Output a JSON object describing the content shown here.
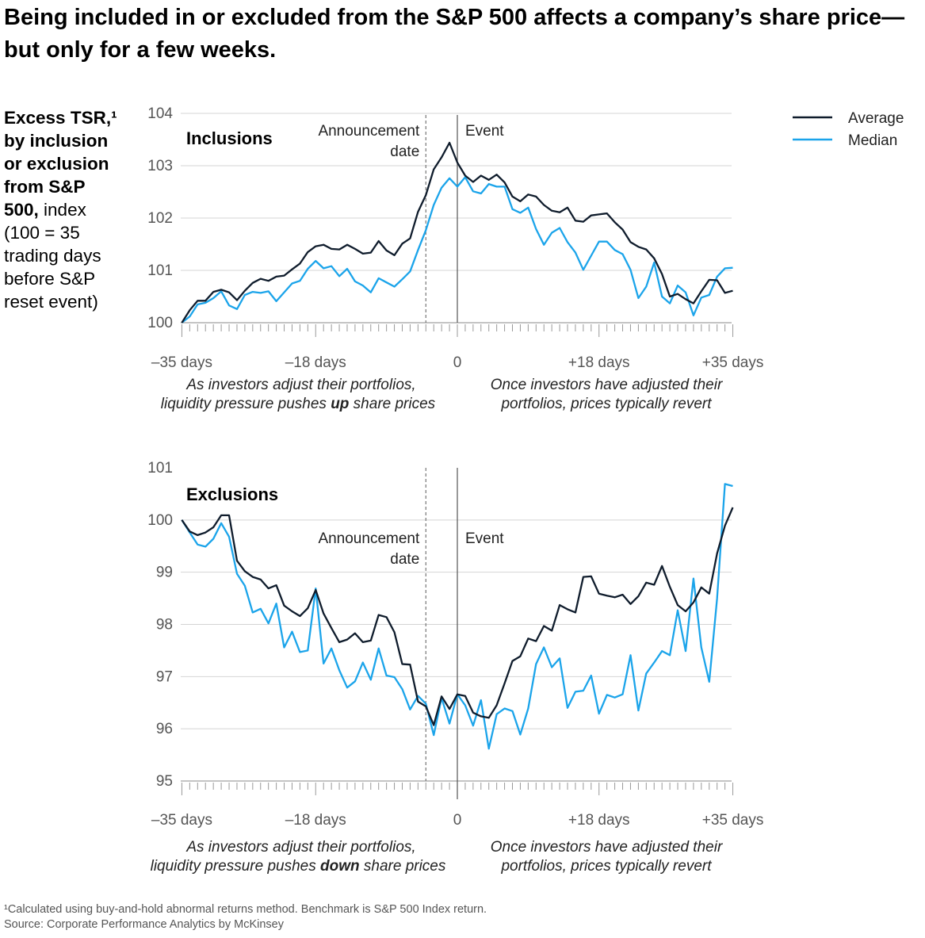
{
  "title": "Being included in or excluded from the S&P 500 affects a company’s share price—but only for a few weeks.",
  "y_label": {
    "bold": "Excess TSR,¹ by inclusion or exclusion from S&P 500,",
    "normal": " index (100 = 35 trading days before S&P reset event)"
  },
  "legend": [
    {
      "name": "Average",
      "color": "#0f1c2c"
    },
    {
      "name": "Median",
      "color": "#1ba4ea"
    }
  ],
  "footnote": {
    "note": "¹Calculated using buy-and-hold abnormal returns method. Benchmark is S&P 500 Index return.",
    "source": "Source: Corporate Performance Analytics by McKinsey"
  },
  "chart_data": [
    {
      "type": "line",
      "title": "Inclusions",
      "x_range": [
        -35,
        35
      ],
      "x_ticks": [
        {
          "value": -35,
          "label": "–35 days"
        },
        {
          "value": -18,
          "label": "–18 days"
        },
        {
          "value": 0,
          "label": "0"
        },
        {
          "value": 18,
          "label": "+18 days"
        },
        {
          "value": 35,
          "label": "+35 days"
        }
      ],
      "ylim": [
        100,
        104
      ],
      "y_ticks": [
        100,
        101,
        102,
        103,
        104
      ],
      "grid": true,
      "legend_position": "top-right",
      "markers": [
        {
          "day": -4,
          "label": [
            "Announcement",
            "date"
          ],
          "style": "dashed"
        },
        {
          "day": 0,
          "label": [
            "Event"
          ],
          "style": "solid"
        }
      ],
      "annotations": {
        "left": {
          "line1": "As investors adjust their portfolios,",
          "line2_pre": "liquidity pressure pushes ",
          "line2_bold": "up",
          "line2_post": " share prices"
        },
        "right": {
          "line1": "Once investors have adjusted their",
          "line2": "portfolios, prices typically revert"
        }
      },
      "x": [
        -35,
        -34,
        -33,
        -32,
        -31,
        -30,
        -29,
        -28,
        -27,
        -26,
        -25,
        -24,
        -23,
        -22,
        -21,
        -20,
        -19,
        -18,
        -17,
        -16,
        -15,
        -14,
        -13,
        -12,
        -11,
        -10,
        -9,
        -8,
        -7,
        -6,
        -5,
        -4,
        -3,
        -2,
        -1,
        0,
        1,
        2,
        3,
        4,
        5,
        6,
        7,
        8,
        9,
        10,
        11,
        12,
        13,
        14,
        15,
        16,
        17,
        18,
        19,
        20,
        21,
        22,
        23,
        24,
        25,
        26,
        27,
        28,
        29,
        30,
        31,
        32,
        33,
        34,
        35
      ],
      "series": [
        {
          "name": "Average",
          "color": "#0f1c2c",
          "values": [
            100.0,
            100.24,
            100.42,
            100.42,
            100.59,
            100.63,
            100.58,
            100.43,
            100.61,
            100.76,
            100.84,
            100.8,
            100.88,
            100.9,
            101.02,
            101.13,
            101.35,
            101.46,
            101.49,
            101.41,
            101.4,
            101.49,
            101.41,
            101.32,
            101.34,
            101.56,
            101.38,
            101.29,
            101.51,
            101.61,
            102.12,
            102.44,
            102.93,
            103.16,
            103.44,
            103.06,
            102.81,
            102.69,
            102.81,
            102.73,
            102.83,
            102.68,
            102.41,
            102.32,
            102.45,
            102.41,
            102.25,
            102.14,
            102.11,
            102.2,
            101.95,
            101.93,
            102.05,
            102.07,
            102.09,
            101.92,
            101.78,
            101.54,
            101.45,
            101.4,
            101.23,
            100.93,
            100.5,
            100.55,
            100.45,
            100.37,
            100.6,
            100.82,
            100.81,
            100.57,
            100.61
          ]
        },
        {
          "name": "Median",
          "color": "#1ba4ea",
          "values": [
            100.0,
            100.12,
            100.35,
            100.38,
            100.47,
            100.6,
            100.33,
            100.26,
            100.53,
            100.59,
            100.57,
            100.6,
            100.41,
            100.58,
            100.75,
            100.8,
            101.03,
            101.18,
            101.04,
            101.08,
            100.89,
            101.03,
            100.79,
            100.71,
            100.58,
            100.85,
            100.77,
            100.69,
            100.83,
            100.98,
            101.39,
            101.77,
            102.25,
            102.58,
            102.76,
            102.6,
            102.78,
            102.51,
            102.47,
            102.65,
            102.6,
            102.6,
            102.17,
            102.1,
            102.2,
            101.79,
            101.49,
            101.72,
            101.81,
            101.54,
            101.34,
            101.01,
            101.28,
            101.55,
            101.55,
            101.39,
            101.31,
            101.01,
            100.47,
            100.69,
            101.15,
            100.5,
            100.37,
            100.71,
            100.58,
            100.14,
            100.48,
            100.53,
            100.88,
            101.04,
            101.05
          ]
        }
      ]
    },
    {
      "type": "line",
      "title": "Exclusions",
      "x_range": [
        -35,
        35
      ],
      "x_ticks": [
        {
          "value": -35,
          "label": "–35 days"
        },
        {
          "value": -18,
          "label": "–18 days"
        },
        {
          "value": 0,
          "label": "0"
        },
        {
          "value": 18,
          "label": "+18 days"
        },
        {
          "value": 35,
          "label": "+35 days"
        }
      ],
      "ylim": [
        95,
        101
      ],
      "y_ticks": [
        95,
        96,
        97,
        98,
        99,
        100,
        101
      ],
      "grid": true,
      "markers": [
        {
          "day": -4,
          "label": [
            "Announcement",
            "date"
          ],
          "style": "dashed"
        },
        {
          "day": 0,
          "label": [
            "Event"
          ],
          "style": "solid"
        }
      ],
      "annotations": {
        "left": {
          "line1": "As investors adjust their portfolios,",
          "line2_pre": "liquidity pressure pushes ",
          "line2_bold": "down",
          "line2_post": " share prices"
        },
        "right": {
          "line1": "Once investors have adjusted their",
          "line2": "portfolios, prices typically revert"
        }
      },
      "x": [
        -35,
        -34,
        -33,
        -32,
        -31,
        -30,
        -29,
        -28,
        -27,
        -26,
        -25,
        -24,
        -23,
        -22,
        -21,
        -20,
        -19,
        -18,
        -17,
        -16,
        -15,
        -14,
        -13,
        -12,
        -11,
        -10,
        -9,
        -8,
        -7,
        -6,
        -5,
        -4,
        -3,
        -2,
        -1,
        0,
        1,
        2,
        3,
        4,
        5,
        6,
        7,
        8,
        9,
        10,
        11,
        12,
        13,
        14,
        15,
        16,
        17,
        18,
        19,
        20,
        21,
        22,
        23,
        24,
        25,
        26,
        27,
        28,
        29,
        30,
        31,
        32,
        33,
        34,
        35
      ],
      "series": [
        {
          "name": "Average",
          "color": "#0f1c2c",
          "values": [
            100.0,
            99.78,
            99.71,
            99.76,
            99.86,
            100.09,
            100.09,
            99.22,
            99.02,
            98.91,
            98.86,
            98.69,
            98.75,
            98.36,
            98.25,
            98.16,
            98.31,
            98.66,
            98.21,
            97.93,
            97.66,
            97.71,
            97.83,
            97.66,
            97.69,
            98.18,
            98.14,
            97.85,
            97.24,
            97.23,
            96.52,
            96.43,
            96.07,
            96.62,
            96.38,
            96.66,
            96.63,
            96.31,
            96.24,
            96.21,
            96.45,
            96.87,
            97.3,
            97.39,
            97.73,
            97.68,
            97.97,
            97.88,
            98.37,
            98.29,
            98.23,
            98.91,
            98.92,
            98.59,
            98.55,
            98.52,
            98.57,
            98.39,
            98.54,
            98.8,
            98.76,
            99.12,
            98.72,
            98.37,
            98.25,
            98.42,
            98.71,
            98.59,
            99.36,
            99.89,
            100.24
          ]
        },
        {
          "name": "Median",
          "color": "#1ba4ea",
          "values": [
            100.0,
            99.76,
            99.53,
            99.49,
            99.64,
            99.94,
            99.68,
            98.97,
            98.74,
            98.23,
            98.3,
            98.02,
            98.4,
            97.56,
            97.86,
            97.47,
            97.5,
            98.69,
            97.25,
            97.54,
            97.12,
            96.79,
            96.91,
            97.27,
            96.94,
            97.54,
            97.02,
            96.99,
            96.76,
            96.37,
            96.63,
            96.48,
            95.88,
            96.59,
            96.1,
            96.66,
            96.45,
            96.06,
            96.55,
            95.62,
            96.28,
            96.39,
            96.34,
            95.89,
            96.39,
            97.24,
            97.56,
            97.18,
            97.35,
            96.4,
            96.71,
            96.73,
            97.02,
            96.29,
            96.65,
            96.6,
            96.66,
            97.41,
            96.35,
            97.06,
            97.27,
            97.49,
            97.41,
            98.27,
            97.49,
            98.88,
            97.56,
            96.9,
            98.5,
            100.69,
            100.65
          ]
        }
      ]
    }
  ]
}
